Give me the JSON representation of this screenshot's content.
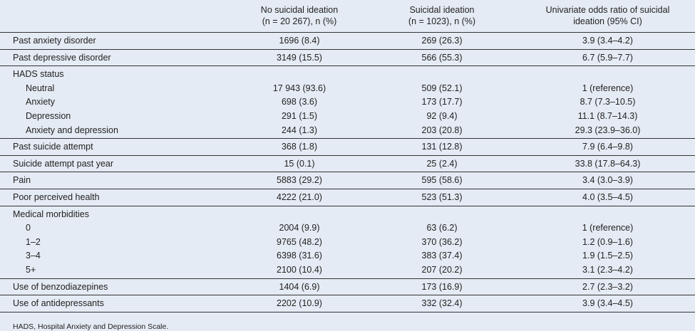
{
  "table": {
    "header": [
      [
        "",
        ""
      ],
      [
        "No suicidal ideation",
        "(n = 20 267), n (%)"
      ],
      [
        "Suicidal ideation",
        "(n = 1023), n (%)"
      ],
      [
        "Univariate odds ratio of suicidal",
        "ideation (95% CI)"
      ]
    ],
    "groups": [
      {
        "label": "Past anxiety disorder",
        "cells": [
          "1696 (8.4)",
          "269 (26.3)",
          "3.9 (3.4–4.2)"
        ]
      },
      {
        "label": "Past depressive disorder",
        "cells": [
          "3149 (15.5)",
          "566 (55.3)",
          "6.7 (5.9–7.7)"
        ]
      },
      {
        "label": "HADS status",
        "rows": [
          {
            "label": "Neutral",
            "cells": [
              "17 943 (93.6)",
              "509 (52.1)",
              "1 (reference)"
            ]
          },
          {
            "label": "Anxiety",
            "cells": [
              "698 (3.6)",
              "173 (17.7)",
              "8.7 (7.3–10.5)"
            ]
          },
          {
            "label": "Depression",
            "cells": [
              "291 (1.5)",
              "92 (9.4)",
              "11.1 (8.7–14.3)"
            ]
          },
          {
            "label": "Anxiety and depression",
            "cells": [
              "244 (1.3)",
              "203 (20.8)",
              "29.3 (23.9–36.0)"
            ]
          }
        ]
      },
      {
        "label": "Past suicide attempt",
        "cells": [
          "368 (1.8)",
          "131 (12.8)",
          "7.9 (6.4–9.8)"
        ]
      },
      {
        "label": "Suicide attempt past year",
        "cells": [
          "15 (0.1)",
          "25 (2.4)",
          "33.8 (17.8–64.3)"
        ]
      },
      {
        "label": "Pain",
        "cells": [
          "5883 (29.2)",
          "595 (58.6)",
          "3.4 (3.0–3.9)"
        ]
      },
      {
        "label": "Poor perceived health",
        "cells": [
          "4222 (21.0)",
          "523 (51.3)",
          "4.0 (3.5–4.5)"
        ]
      },
      {
        "label": "Medical morbidities",
        "rows": [
          {
            "label": "0",
            "cells": [
              "2004 (9.9)",
              "63 (6.2)",
              "1 (reference)"
            ]
          },
          {
            "label": "1–2",
            "cells": [
              "9765 (48.2)",
              "370 (36.2)",
              "1.2 (0.9–1.6)"
            ]
          },
          {
            "label": "3–4",
            "cells": [
              "6398 (31.6)",
              "383 (37.4)",
              "1.9 (1.5–2.5)"
            ]
          },
          {
            "label": "5+",
            "cells": [
              "2100 (10.4)",
              "207 (20.2)",
              "3.1 (2.3–4.2)"
            ]
          }
        ]
      },
      {
        "label": "Use of benzodiazepines",
        "cells": [
          "1404 (6.9)",
          "173 (16.9)",
          "2.7 (2.3–3.2)"
        ]
      },
      {
        "label": "Use of antidepressants",
        "cells": [
          "2202 (10.9)",
          "332 (32.4)",
          "3.9 (3.4–4.5)"
        ]
      }
    ],
    "footnote": "HADS, Hospital Anxiety and Depression Scale."
  }
}
